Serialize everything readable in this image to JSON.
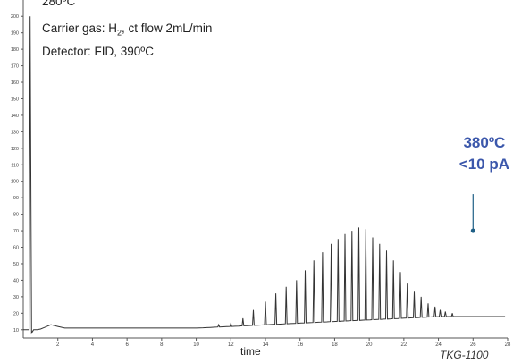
{
  "chart_data": {
    "type": "line",
    "xlabel": "time",
    "x_ticks": [
      2,
      4,
      6,
      8,
      10,
      12,
      14,
      16,
      18,
      20,
      22,
      24,
      26,
      28
    ],
    "y_ticks": [
      10,
      20,
      30,
      40,
      50,
      60,
      70,
      80,
      90,
      100,
      110,
      120,
      130,
      140,
      150,
      160,
      170,
      180,
      190,
      200
    ],
    "xlim": [
      0,
      28
    ],
    "ylim": [
      5,
      205
    ],
    "baseline_start": 10,
    "baseline_end": 18,
    "solvent_peak": {
      "x": 0.4,
      "y": 200
    },
    "peaks": [
      {
        "x": 11.3,
        "y": 13
      },
      {
        "x": 12.0,
        "y": 14
      },
      {
        "x": 12.7,
        "y": 17
      },
      {
        "x": 13.3,
        "y": 22
      },
      {
        "x": 14.0,
        "y": 27
      },
      {
        "x": 14.6,
        "y": 32
      },
      {
        "x": 15.2,
        "y": 36
      },
      {
        "x": 15.8,
        "y": 40
      },
      {
        "x": 16.3,
        "y": 46
      },
      {
        "x": 16.8,
        "y": 52
      },
      {
        "x": 17.3,
        "y": 57
      },
      {
        "x": 17.8,
        "y": 62
      },
      {
        "x": 18.2,
        "y": 65
      },
      {
        "x": 18.6,
        "y": 68
      },
      {
        "x": 19.0,
        "y": 70
      },
      {
        "x": 19.4,
        "y": 72
      },
      {
        "x": 19.8,
        "y": 71
      },
      {
        "x": 20.2,
        "y": 66
      },
      {
        "x": 20.6,
        "y": 62
      },
      {
        "x": 21.0,
        "y": 58
      },
      {
        "x": 21.4,
        "y": 52
      },
      {
        "x": 21.8,
        "y": 45
      },
      {
        "x": 22.2,
        "y": 38
      },
      {
        "x": 22.6,
        "y": 33
      },
      {
        "x": 23.0,
        "y": 30
      },
      {
        "x": 23.4,
        "y": 26
      },
      {
        "x": 23.8,
        "y": 24
      },
      {
        "x": 24.1,
        "y": 22
      },
      {
        "x": 24.4,
        "y": 21
      },
      {
        "x": 24.8,
        "y": 20
      }
    ],
    "annotation_marker": {
      "x": 26,
      "y": 70
    }
  },
  "header": {
    "line1": "280ºC",
    "line2_pre": "Carrier gas: H",
    "line2_sub": "2",
    "line2_post": ", ct flow 2mL/min",
    "line3": "Detector: FID, 390ºC"
  },
  "annotation": {
    "temp": "380ºC",
    "signal": "<10 pA"
  },
  "code": "TKG-1100",
  "colors": {
    "trace": "#333333",
    "annotation": "#3b57ab",
    "marker": "#1f5f86"
  }
}
